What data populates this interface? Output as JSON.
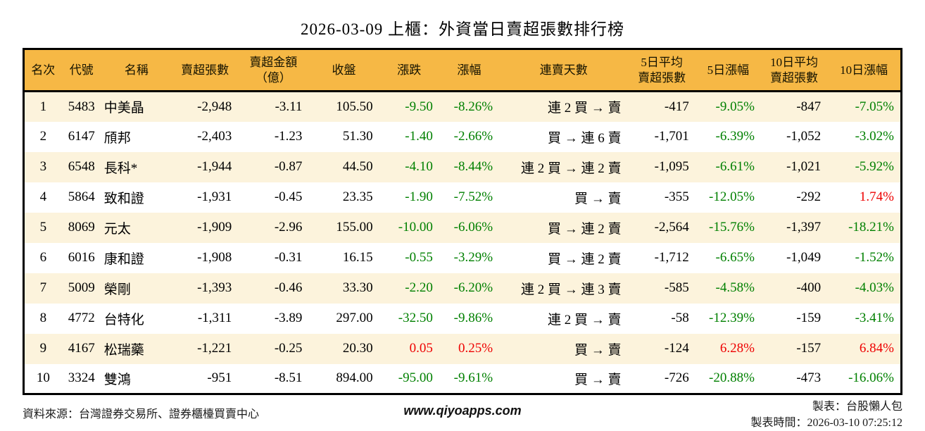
{
  "title": "2026-03-09 上櫃：外資當日賣超張數排行榜",
  "colors": {
    "header_bg": "#F6B845",
    "stripe_bg": "#FCF3DC",
    "down_green": "#008000",
    "up_red": "#EE0000",
    "border": "#000000"
  },
  "table": {
    "columns": [
      {
        "key": "rank",
        "label": "名次"
      },
      {
        "key": "code",
        "label": "代號"
      },
      {
        "key": "name",
        "label": "名稱"
      },
      {
        "key": "sell_shares",
        "label": "賣超張數"
      },
      {
        "key": "sell_amount",
        "label": "賣超金額\n（億）"
      },
      {
        "key": "close",
        "label": "收盤"
      },
      {
        "key": "change",
        "label": "漲跌"
      },
      {
        "key": "change_pct",
        "label": "漲幅"
      },
      {
        "key": "streak",
        "label": "連賣天數"
      },
      {
        "key": "avg5",
        "label": "5日平均\n賣超張數"
      },
      {
        "key": "pct5",
        "label": "5日漲幅"
      },
      {
        "key": "avg10",
        "label": "10日平均\n賣超張數"
      },
      {
        "key": "pct10",
        "label": "10日漲幅"
      }
    ],
    "rows": [
      {
        "rank": "1",
        "code": "5483",
        "name": "中美晶",
        "sell_shares": "-2,948",
        "sell_amount": "-3.11",
        "close": "105.50",
        "change": {
          "text": "-9.50",
          "dir": "down"
        },
        "change_pct": {
          "text": "-8.26%",
          "dir": "down"
        },
        "streak": "連 2 買 → 賣",
        "avg5": "-417",
        "pct5": {
          "text": "-9.05%",
          "dir": "down"
        },
        "avg10": "-847",
        "pct10": {
          "text": "-7.05%",
          "dir": "down"
        }
      },
      {
        "rank": "2",
        "code": "6147",
        "name": "頎邦",
        "sell_shares": "-2,403",
        "sell_amount": "-1.23",
        "close": "51.30",
        "change": {
          "text": "-1.40",
          "dir": "down"
        },
        "change_pct": {
          "text": "-2.66%",
          "dir": "down"
        },
        "streak": "買 → 連 6 賣",
        "avg5": "-1,701",
        "pct5": {
          "text": "-6.39%",
          "dir": "down"
        },
        "avg10": "-1,052",
        "pct10": {
          "text": "-3.02%",
          "dir": "down"
        }
      },
      {
        "rank": "3",
        "code": "6548",
        "name": "長科*",
        "sell_shares": "-1,944",
        "sell_amount": "-0.87",
        "close": "44.50",
        "change": {
          "text": "-4.10",
          "dir": "down"
        },
        "change_pct": {
          "text": "-8.44%",
          "dir": "down"
        },
        "streak": "連 2 買 → 連 2 賣",
        "avg5": "-1,095",
        "pct5": {
          "text": "-6.61%",
          "dir": "down"
        },
        "avg10": "-1,021",
        "pct10": {
          "text": "-5.92%",
          "dir": "down"
        }
      },
      {
        "rank": "4",
        "code": "5864",
        "name": "致和證",
        "sell_shares": "-1,931",
        "sell_amount": "-0.45",
        "close": "23.35",
        "change": {
          "text": "-1.90",
          "dir": "down"
        },
        "change_pct": {
          "text": "-7.52%",
          "dir": "down"
        },
        "streak": "買 → 賣",
        "avg5": "-355",
        "pct5": {
          "text": "-12.05%",
          "dir": "down"
        },
        "avg10": "-292",
        "pct10": {
          "text": "1.74%",
          "dir": "up"
        }
      },
      {
        "rank": "5",
        "code": "8069",
        "name": "元太",
        "sell_shares": "-1,909",
        "sell_amount": "-2.96",
        "close": "155.00",
        "change": {
          "text": "-10.00",
          "dir": "down"
        },
        "change_pct": {
          "text": "-6.06%",
          "dir": "down"
        },
        "streak": "買 → 連 2 賣",
        "avg5": "-2,564",
        "pct5": {
          "text": "-15.76%",
          "dir": "down"
        },
        "avg10": "-1,397",
        "pct10": {
          "text": "-18.21%",
          "dir": "down"
        }
      },
      {
        "rank": "6",
        "code": "6016",
        "name": "康和證",
        "sell_shares": "-1,908",
        "sell_amount": "-0.31",
        "close": "16.15",
        "change": {
          "text": "-0.55",
          "dir": "down"
        },
        "change_pct": {
          "text": "-3.29%",
          "dir": "down"
        },
        "streak": "買 → 連 2 賣",
        "avg5": "-1,712",
        "pct5": {
          "text": "-6.65%",
          "dir": "down"
        },
        "avg10": "-1,049",
        "pct10": {
          "text": "-1.52%",
          "dir": "down"
        }
      },
      {
        "rank": "7",
        "code": "5009",
        "name": "榮剛",
        "sell_shares": "-1,393",
        "sell_amount": "-0.46",
        "close": "33.30",
        "change": {
          "text": "-2.20",
          "dir": "down"
        },
        "change_pct": {
          "text": "-6.20%",
          "dir": "down"
        },
        "streak": "連 2 買 → 連 3 賣",
        "avg5": "-585",
        "pct5": {
          "text": "-4.58%",
          "dir": "down"
        },
        "avg10": "-400",
        "pct10": {
          "text": "-4.03%",
          "dir": "down"
        }
      },
      {
        "rank": "8",
        "code": "4772",
        "name": "台特化",
        "sell_shares": "-1,311",
        "sell_amount": "-3.89",
        "close": "297.00",
        "change": {
          "text": "-32.50",
          "dir": "down"
        },
        "change_pct": {
          "text": "-9.86%",
          "dir": "down"
        },
        "streak": "連 2 買 → 賣",
        "avg5": "-58",
        "pct5": {
          "text": "-12.39%",
          "dir": "down"
        },
        "avg10": "-159",
        "pct10": {
          "text": "-3.41%",
          "dir": "down"
        }
      },
      {
        "rank": "9",
        "code": "4167",
        "name": "松瑞藥",
        "sell_shares": "-1,221",
        "sell_amount": "-0.25",
        "close": "20.30",
        "change": {
          "text": "0.05",
          "dir": "up"
        },
        "change_pct": {
          "text": "0.25%",
          "dir": "up"
        },
        "streak": "買 → 賣",
        "avg5": "-124",
        "pct5": {
          "text": "6.28%",
          "dir": "up"
        },
        "avg10": "-157",
        "pct10": {
          "text": "6.84%",
          "dir": "up"
        }
      },
      {
        "rank": "10",
        "code": "3324",
        "name": "雙鴻",
        "sell_shares": "-951",
        "sell_amount": "-8.51",
        "close": "894.00",
        "change": {
          "text": "-95.00",
          "dir": "down"
        },
        "change_pct": {
          "text": "-9.61%",
          "dir": "down"
        },
        "streak": "買 → 賣",
        "avg5": "-726",
        "pct5": {
          "text": "-20.88%",
          "dir": "down"
        },
        "avg10": "-473",
        "pct10": {
          "text": "-16.06%",
          "dir": "down"
        }
      }
    ]
  },
  "footer": {
    "source": "資料來源：台灣證券交易所、證券櫃檯買賣中心",
    "website": "www.qiyoapps.com",
    "maker": "製表：台股懶人包",
    "made_time": "製表時間：2026-03-10 07:25:12"
  }
}
